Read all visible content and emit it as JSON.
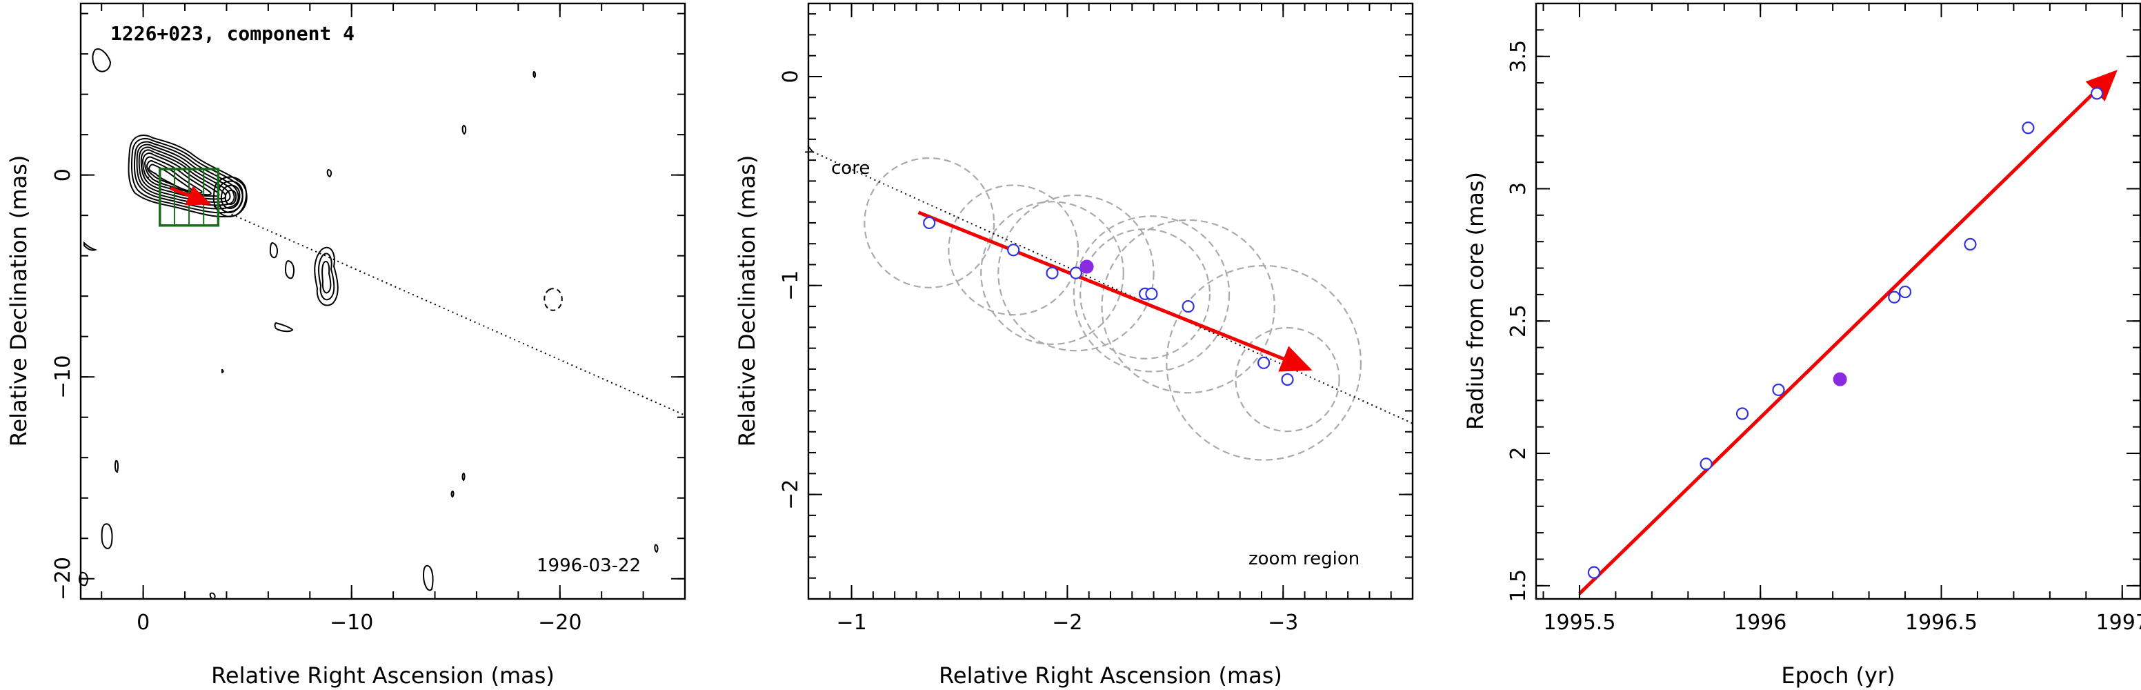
{
  "colors": {
    "fit": "#f20000",
    "point": "#3333dd",
    "highlight": "#8a2be2",
    "zoom_box": "#1a6b1a",
    "error_circle": "#aaaaaa"
  },
  "chart_data": [
    {
      "type": "contour",
      "title": "1226+023, component 4",
      "date_label": "1996-03-22",
      "xlabel": "Relative Right Ascension (mas)",
      "ylabel": "Relative Declination (mas)",
      "xlim": [
        3,
        -26
      ],
      "ylim": [
        -21,
        8.5
      ],
      "xticks": [
        0,
        -10,
        -20
      ],
      "xtick_labels": [
        "0",
        "−10",
        "−20"
      ],
      "yticks": [
        0,
        -10,
        -20
      ],
      "ytick_labels": [
        "0",
        "−10",
        "−20"
      ],
      "direction_line": {
        "from": [
          0,
          0
        ],
        "to": [
          -26,
          -11.9
        ]
      },
      "zoom_box": {
        "x": [
          -0.8,
          -3.6
        ],
        "y": [
          0.3,
          -2.5
        ]
      }
    },
    {
      "type": "scatter",
      "annotations": [
        "core",
        "zoom region"
      ],
      "xlabel": "Relative Right Ascension (mas)",
      "ylabel": "Relative Declination (mas)",
      "xlim": [
        -0.8,
        -3.6
      ],
      "ylim": [
        -2.5,
        0.35
      ],
      "xticks": [
        -1,
        -2,
        -3
      ],
      "xtick_labels": [
        "−1",
        "−2",
        "−3"
      ],
      "yticks": [
        0,
        -1,
        -2
      ],
      "ytick_labels": [
        "0",
        "−1",
        "−2"
      ],
      "points": [
        {
          "x": -1.36,
          "y": -0.7,
          "r": 0.3
        },
        {
          "x": -1.75,
          "y": -0.83,
          "r": 0.3
        },
        {
          "x": -1.93,
          "y": -0.94,
          "r": 0.33
        },
        {
          "x": -2.04,
          "y": -0.94,
          "r": 0.36
        },
        {
          "x": -2.36,
          "y": -1.04,
          "r": 0.3
        },
        {
          "x": -2.39,
          "y": -1.04,
          "r": 0.36
        },
        {
          "x": -2.56,
          "y": -1.1,
          "r": 0.4
        },
        {
          "x": -2.91,
          "y": -1.37,
          "r": 0.45
        },
        {
          "x": -3.02,
          "y": -1.45,
          "r": 0.24
        }
      ],
      "highlight_point": {
        "x": -2.09,
        "y": -0.91
      },
      "fit_arrow": {
        "from": [
          -1.31,
          -0.65
        ],
        "to": [
          -3.12,
          -1.4
        ]
      },
      "direction_line": {
        "from": [
          -0.82,
          -0.36
        ],
        "to": [
          -3.6,
          -1.66
        ]
      }
    },
    {
      "type": "scatter",
      "xlabel": "Epoch (yr)",
      "ylabel": "Radius from core (mas)",
      "xlim": [
        1995.38,
        1997.05
      ],
      "ylim": [
        1.45,
        3.7
      ],
      "xticks": [
        1995.5,
        1996,
        1996.5,
        1997
      ],
      "xtick_labels": [
        "1995.5",
        "1996",
        "1996.5",
        "1997"
      ],
      "yticks": [
        1.5,
        2,
        2.5,
        3,
        3.5
      ],
      "ytick_labels": [
        "1.5",
        "2",
        "2.5",
        "3",
        "3.5"
      ],
      "points": [
        {
          "x": 1995.54,
          "y": 1.55
        },
        {
          "x": 1995.85,
          "y": 1.96
        },
        {
          "x": 1995.95,
          "y": 2.15
        },
        {
          "x": 1996.05,
          "y": 2.24
        },
        {
          "x": 1996.37,
          "y": 2.59
        },
        {
          "x": 1996.4,
          "y": 2.61
        },
        {
          "x": 1996.58,
          "y": 2.79
        },
        {
          "x": 1996.74,
          "y": 3.23
        },
        {
          "x": 1996.93,
          "y": 3.36
        }
      ],
      "highlight_point": {
        "x": 1996.22,
        "y": 2.28
      },
      "fit_arrow": {
        "from": [
          1995.5,
          1.47
        ],
        "to": [
          1996.98,
          3.44
        ]
      }
    }
  ]
}
